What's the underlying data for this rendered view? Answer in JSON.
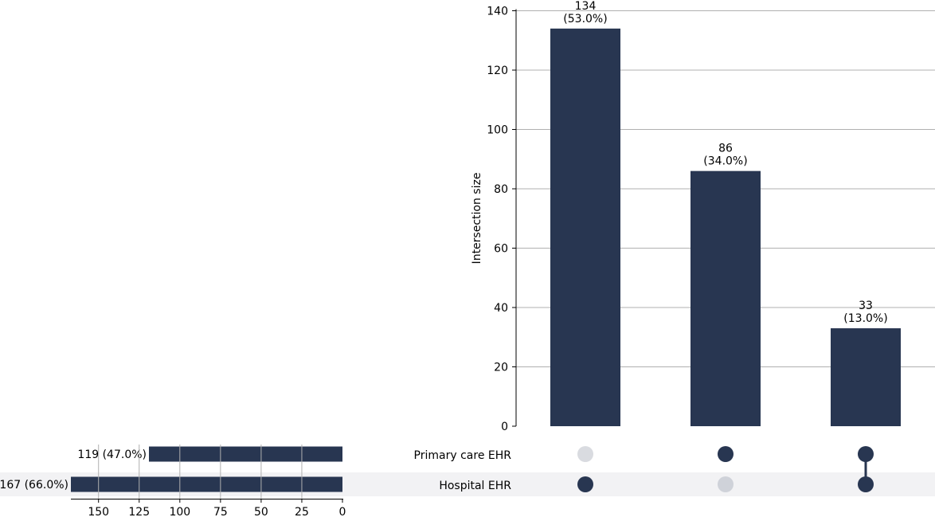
{
  "chart_data": {
    "type": "upset",
    "colors": {
      "bar": "#283651",
      "dot_active": "#283651",
      "dot_inactive_primary": "#d9dbe0",
      "dot_inactive_hospital": "#cfd2d9",
      "shade": "#f2f2f4",
      "grid": "#b0b0b0"
    },
    "sets": [
      {
        "name": "Primary care EHR",
        "size": 119,
        "label": "119 (47.0%)"
      },
      {
        "name": "Hospital EHR",
        "size": 167,
        "label": "167 (66.0%)"
      }
    ],
    "intersections": [
      {
        "members": [
          false,
          true
        ],
        "size": 134,
        "label_count": "134",
        "label_pct": "(53.0%)"
      },
      {
        "members": [
          true,
          false
        ],
        "size": 86,
        "label_count": "86",
        "label_pct": "(34.0%)"
      },
      {
        "members": [
          true,
          true
        ],
        "size": 33,
        "label_count": "33",
        "label_pct": "(13.0%)"
      }
    ],
    "intersection_axis": {
      "ylabel": "Intersection size",
      "ylim": [
        0,
        140
      ],
      "ticks": [
        0,
        20,
        40,
        60,
        80,
        100,
        120,
        140
      ],
      "grid": true
    },
    "set_size_axis": {
      "xlim": [
        167,
        0
      ],
      "ticks": [
        150,
        125,
        100,
        75,
        50,
        25,
        0
      ],
      "grid": true
    }
  }
}
